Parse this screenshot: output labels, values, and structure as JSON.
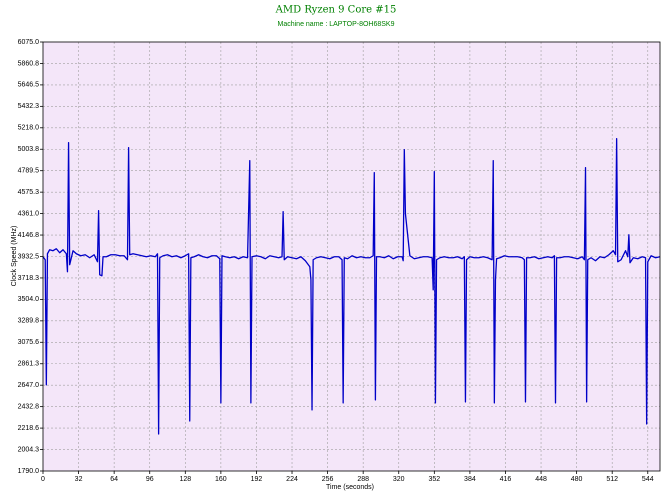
{
  "chart_data": {
    "type": "line",
    "title": "AMD Ryzen 9 Core #15",
    "subtitle": "Machine name : LAPTOP-8OH68SK9",
    "x_label": "Time (seconds)",
    "y_label": "Clock Speed (MHz)",
    "grid": true,
    "xlim": [
      0,
      555
    ],
    "ylim": [
      1790,
      6075
    ],
    "xticks": [
      0,
      32,
      64,
      96,
      128,
      160,
      192,
      224,
      256,
      288,
      320,
      352,
      384,
      416,
      448,
      480,
      512,
      544
    ],
    "yticks": [
      {
        "value": 1790,
        "label": "1790.0"
      },
      2004.3,
      2218.6,
      2432.8,
      {
        "value": 2647,
        "label": "2647.0"
      },
      2861.3,
      3075.6,
      3289.8,
      {
        "value": 3504,
        "label": "3504.0"
      },
      3718.3,
      3932.5,
      4146.8,
      {
        "value": 4361,
        "label": "4361.0"
      },
      4575.3,
      4789.5,
      5003.8,
      {
        "value": 5218,
        "label": "5218.0"
      },
      5432.3,
      5646.5,
      5860.8,
      {
        "value": 6075,
        "label": "6075.0"
      }
    ],
    "series": [
      {
        "color": "#0000c8",
        "x": [
          0,
          2,
          3,
          4,
          6,
          9,
          12,
          15,
          18,
          21,
          22,
          23,
          24,
          27,
          30,
          34,
          38,
          42,
          46,
          49,
          50,
          51,
          53,
          54,
          57,
          61,
          65,
          69,
          73,
          76,
          77,
          78,
          81,
          85,
          89,
          93,
          97,
          101,
          103,
          104,
          105,
          108,
          112,
          116,
          120,
          124,
          128,
          131,
          132,
          133,
          136,
          140,
          144,
          148,
          152,
          156,
          159,
          160,
          161,
          164,
          168,
          172,
          176,
          180,
          184,
          186,
          187,
          188,
          192,
          196,
          200,
          204,
          208,
          212,
          215,
          216,
          217,
          220,
          224,
          228,
          232,
          236,
          240,
          241,
          242,
          243,
          246,
          250,
          254,
          258,
          262,
          266,
          269,
          270,
          271,
          274,
          278,
          282,
          286,
          290,
          294,
          297,
          298,
          299,
          300,
          303,
          307,
          311,
          315,
          319,
          323,
          324,
          325,
          326,
          330,
          334,
          338,
          342,
          346,
          350,
          351,
          352,
          353,
          354,
          357,
          361,
          365,
          369,
          373,
          377,
          379,
          380,
          381,
          384,
          388,
          392,
          396,
          400,
          404,
          405,
          406,
          407,
          408,
          411,
          415,
          419,
          423,
          427,
          431,
          433,
          434,
          435,
          438,
          442,
          446,
          450,
          454,
          458,
          460,
          461,
          462,
          465,
          469,
          473,
          477,
          481,
          485,
          487,
          488,
          489,
          490,
          493,
          497,
          501,
          505,
          509,
          513,
          515,
          516,
          517,
          520,
          524,
          526,
          527,
          528,
          531,
          535,
          539,
          542,
          543,
          544,
          547,
          551,
          555
        ],
        "values": [
          3930,
          3900,
          2650,
          3960,
          4000,
          3990,
          4010,
          3970,
          4000,
          3960,
          3780,
          5070,
          3850,
          3990,
          3960,
          3940,
          3950,
          3920,
          3950,
          3880,
          4390,
          3750,
          3740,
          3930,
          3930,
          3950,
          3950,
          3940,
          3940,
          3900,
          5020,
          3950,
          3960,
          3950,
          3940,
          3930,
          3940,
          3930,
          3960,
          2160,
          3920,
          3940,
          3950,
          3930,
          3940,
          3920,
          3940,
          3960,
          2290,
          3920,
          3930,
          3950,
          3930,
          3920,
          3940,
          3940,
          3910,
          2470,
          3940,
          3930,
          3920,
          3930,
          3910,
          3930,
          3920,
          4890,
          2470,
          3930,
          3940,
          3930,
          3910,
          3940,
          3930,
          3920,
          3930,
          4380,
          3900,
          3930,
          3920,
          3910,
          3930,
          3890,
          3830,
          3700,
          2400,
          3900,
          3920,
          3930,
          3920,
          3910,
          3930,
          3930,
          3900,
          2470,
          3920,
          3910,
          3940,
          3920,
          3930,
          3920,
          3920,
          3940,
          4770,
          2500,
          3930,
          3930,
          3920,
          3940,
          3910,
          3930,
          3930,
          3890,
          5000,
          4360,
          3940,
          3910,
          3920,
          3930,
          3930,
          3920,
          3600,
          4780,
          2470,
          3900,
          3920,
          3930,
          3920,
          3920,
          3930,
          3910,
          3930,
          2480,
          3900,
          3930,
          3920,
          3920,
          3930,
          3920,
          3900,
          4890,
          2470,
          3700,
          3910,
          3920,
          3940,
          3930,
          3930,
          3930,
          3920,
          3900,
          2480,
          3920,
          3920,
          3930,
          3910,
          3920,
          3930,
          3920,
          3940,
          2470,
          3920,
          3920,
          3930,
          3930,
          3920,
          3910,
          3930,
          3900,
          4820,
          2480,
          3900,
          3920,
          3890,
          3930,
          3920,
          3950,
          3990,
          3950,
          5110,
          3880,
          3900,
          3990,
          3930,
          4150,
          3870,
          3920,
          3910,
          3930,
          3920,
          2260,
          3880,
          3940,
          3920,
          3930
        ]
      }
    ]
  }
}
